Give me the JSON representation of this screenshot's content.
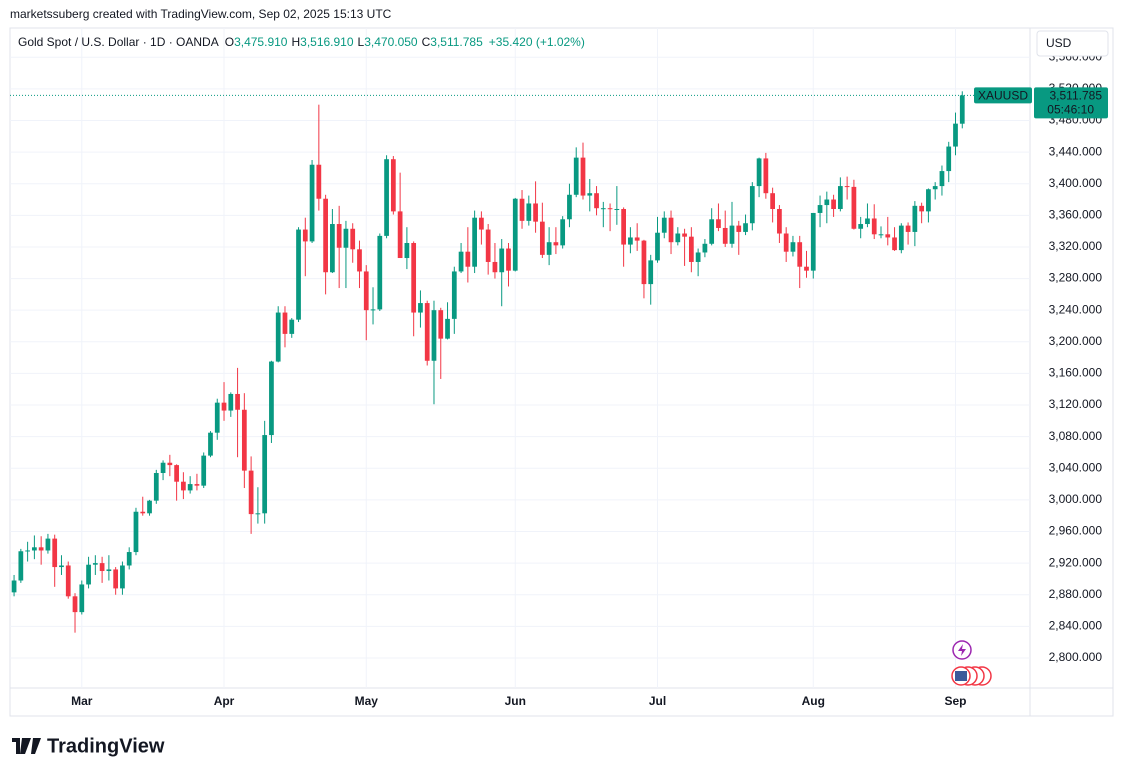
{
  "header": {
    "credit": "marketssuberg created with TradingView.com, Sep 02, 2025 15:13 UTC",
    "symbol": "Gold Spot / U.S. Dollar · 1D · OANDA",
    "o_label": "O",
    "open": "3,475.910",
    "h_label": "H",
    "high": "3,516.910",
    "l_label": "L",
    "low": "3,470.050",
    "c_label": "C",
    "close": "3,511.785",
    "change": "+35.420 (+1.02%)"
  },
  "currency": "USD",
  "price_label": {
    "symbol": "XAUUSD",
    "price": "3,511.785",
    "countdown": "05:46:10"
  },
  "logo": "TradingView",
  "chart_data": {
    "type": "candlestick",
    "up_color": "#089981",
    "down_color": "#f23645",
    "grid": true,
    "xlim": [
      -0.6,
      150
    ],
    "ylim": [
      2762,
      3597
    ],
    "xticks": [
      {
        "value": 10,
        "label": "Mar"
      },
      {
        "value": 31,
        "label": "Apr"
      },
      {
        "value": 52,
        "label": "May"
      },
      {
        "value": 74,
        "label": "Jun"
      },
      {
        "value": 95,
        "label": "Jul"
      },
      {
        "value": 118,
        "label": "Aug"
      },
      {
        "value": 139,
        "label": "Sep"
      }
    ],
    "yticks": [
      {
        "value": 2800,
        "label": "2,800.000"
      },
      {
        "value": 2840,
        "label": "2,840.000"
      },
      {
        "value": 2880,
        "label": "2,880.000"
      },
      {
        "value": 2920,
        "label": "2,920.000"
      },
      {
        "value": 2960,
        "label": "2,960.000"
      },
      {
        "value": 3000,
        "label": "3,000.000"
      },
      {
        "value": 3040,
        "label": "3,040.000"
      },
      {
        "value": 3080,
        "label": "3,080.000"
      },
      {
        "value": 3120,
        "label": "3,120.000"
      },
      {
        "value": 3160,
        "label": "3,160.000"
      },
      {
        "value": 3200,
        "label": "3,200.000"
      },
      {
        "value": 3240,
        "label": "3,240.000"
      },
      {
        "value": 3280,
        "label": "3,280.000"
      },
      {
        "value": 3320,
        "label": "3,320.000"
      },
      {
        "value": 3360,
        "label": "3,360.000"
      },
      {
        "value": 3400,
        "label": "3,400.000"
      },
      {
        "value": 3440,
        "label": "3,440.000"
      },
      {
        "value": 3480,
        "label": "3,480.000"
      },
      {
        "value": 3520,
        "label": "3,520.000"
      },
      {
        "value": 3560,
        "label": "3,560.000"
      }
    ],
    "open": [
      2883,
      2898,
      2935,
      2936,
      2940,
      2936,
      2951,
      2915,
      2917,
      2878,
      2858,
      2893,
      2918,
      2920,
      2910,
      2912,
      2888,
      2917,
      2934,
      2985,
      2983,
      2999,
      3034,
      3047,
      3044,
      3023,
      3012,
      3020,
      3018,
      3056,
      3085,
      3123,
      3113,
      3134,
      3114,
      3037,
      2982,
      2983,
      3082,
      3175,
      3237,
      3210,
      3228,
      3342,
      3327,
      3424,
      3381,
      3288,
      3349,
      3319,
      3343,
      3317,
      3289,
      3240,
      3241,
      3334,
      3431,
      3365,
      3306,
      3325,
      3237,
      3249,
      3176,
      3240,
      3204,
      3229,
      3289,
      3314,
      3295,
      3357,
      3342,
      3301,
      3288,
      3318,
      3290,
      3381,
      3353,
      3375,
      3352,
      3310,
      3326,
      3322,
      3355,
      3386,
      3433,
      3385,
      3388,
      3369,
      3369,
      3368,
      3368,
      3323,
      3332,
      3328,
      3273,
      3303,
      3338,
      3357,
      3326,
      3337,
      3333,
      3301,
      3313,
      3324,
      3355,
      3344,
      3324,
      3347,
      3339,
      3350,
      3397,
      3432,
      3388,
      3368,
      3337,
      3314,
      3326,
      3295,
      3290,
      3363,
      3373,
      3380,
      3368,
      3397,
      3396,
      3343,
      3349,
      3356,
      3336,
      3336,
      3332,
      3316,
      3347,
      3339,
      3372,
      3365,
      3393,
      3397,
      3416,
      3447,
      3475.91
    ],
    "high": [
      2905,
      2938,
      2947,
      2955,
      2954,
      2957,
      2956,
      2930,
      2922,
      2882,
      2898,
      2928,
      2930,
      2928,
      2930,
      2915,
      2922,
      2940,
      2990,
      3004,
      3000,
      3038,
      3050,
      3057,
      3045,
      3035,
      3030,
      3033,
      3060,
      3087,
      3128,
      3149,
      3136,
      3167,
      3135,
      3055,
      3016,
      3100,
      3176,
      3245,
      3245,
      3230,
      3345,
      3357,
      3430,
      3500,
      3386,
      3368,
      3372,
      3353,
      3350,
      3328,
      3297,
      3269,
      3337,
      3436,
      3435,
      3414,
      3345,
      3327,
      3265,
      3252,
      3252,
      3243,
      3250,
      3295,
      3325,
      3345,
      3366,
      3365,
      3349,
      3325,
      3330,
      3325,
      3382,
      3392,
      3385,
      3403,
      3376,
      3345,
      3345,
      3359,
      3400,
      3446,
      3452,
      3406,
      3397,
      3377,
      3375,
      3397,
      3370,
      3345,
      3350,
      3329,
      3310,
      3358,
      3365,
      3366,
      3345,
      3343,
      3345,
      3318,
      3330,
      3369,
      3375,
      3366,
      3377,
      3353,
      3361,
      3402,
      3433,
      3439,
      3395,
      3373,
      3345,
      3334,
      3334,
      3315,
      3363,
      3385,
      3390,
      3386,
      3408,
      3409,
      3405,
      3358,
      3375,
      3374,
      3346,
      3358,
      3345,
      3350,
      3351,
      3378,
      3376,
      3394,
      3402,
      3423,
      3453,
      3490,
      3516.91
    ],
    "low": [
      2878,
      2895,
      2922,
      2925,
      2918,
      2932,
      2890,
      2905,
      2875,
      2832,
      2855,
      2888,
      2905,
      2895,
      2898,
      2880,
      2880,
      2912,
      2930,
      2980,
      2980,
      2995,
      3025,
      3030,
      2999,
      3001,
      3008,
      3012,
      3015,
      3054,
      3076,
      3100,
      3105,
      3054,
      3015,
      2957,
      2970,
      2970,
      3072,
      3174,
      3193,
      3205,
      3225,
      3283,
      3325,
      3366,
      3260,
      3287,
      3268,
      3268,
      3300,
      3268,
      3202,
      3222,
      3239,
      3331,
      3361,
      3306,
      3292,
      3207,
      3218,
      3170,
      3121,
      3153,
      3203,
      3210,
      3287,
      3275,
      3287,
      3323,
      3285,
      3280,
      3245,
      3270,
      3289,
      3343,
      3347,
      3338,
      3306,
      3297,
      3311,
      3318,
      3345,
      3383,
      3380,
      3365,
      3360,
      3345,
      3340,
      3348,
      3295,
      3312,
      3315,
      3255,
      3247,
      3300,
      3331,
      3311,
      3322,
      3296,
      3288,
      3283,
      3307,
      3322,
      3340,
      3320,
      3319,
      3310,
      3335,
      3341,
      3383,
      3381,
      3351,
      3325,
      3301,
      3308,
      3268,
      3281,
      3280,
      3345,
      3350,
      3358,
      3365,
      3380,
      3342,
      3331,
      3345,
      3330,
      3331,
      3322,
      3315,
      3312,
      3323,
      3321,
      3350,
      3351,
      3380,
      3385,
      3402,
      3436,
      3470.05
    ],
    "close": [
      2898,
      2935,
      2936,
      2940,
      2936,
      2951,
      2915,
      2917,
      2878,
      2858,
      2893,
      2918,
      2920,
      2910,
      2912,
      2888,
      2917,
      2934,
      2985,
      2983,
      2999,
      3034,
      3047,
      3044,
      3023,
      3012,
      3020,
      3018,
      3056,
      3085,
      3123,
      3113,
      3134,
      3114,
      3037,
      2982,
      2983,
      3082,
      3175,
      3237,
      3210,
      3228,
      3342,
      3327,
      3424,
      3381,
      3288,
      3349,
      3319,
      3343,
      3317,
      3289,
      3240,
      3241,
      3334,
      3431,
      3365,
      3306,
      3325,
      3237,
      3249,
      3176,
      3240,
      3204,
      3229,
      3289,
      3314,
      3295,
      3357,
      3342,
      3301,
      3288,
      3318,
      3290,
      3381,
      3353,
      3375,
      3352,
      3310,
      3326,
      3322,
      3355,
      3386,
      3433,
      3385,
      3388,
      3369,
      3369,
      3368,
      3368,
      3323,
      3332,
      3328,
      3273,
      3303,
      3338,
      3357,
      3326,
      3337,
      3333,
      3301,
      3313,
      3324,
      3355,
      3344,
      3324,
      3347,
      3339,
      3350,
      3397,
      3432,
      3388,
      3368,
      3337,
      3314,
      3326,
      3295,
      3290,
      3363,
      3373,
      3380,
      3368,
      3397,
      3396,
      3343,
      3349,
      3356,
      3336,
      3336,
      3332,
      3316,
      3347,
      3339,
      3372,
      3365,
      3393,
      3397,
      3416,
      3447,
      3476,
      3511.785
    ]
  }
}
